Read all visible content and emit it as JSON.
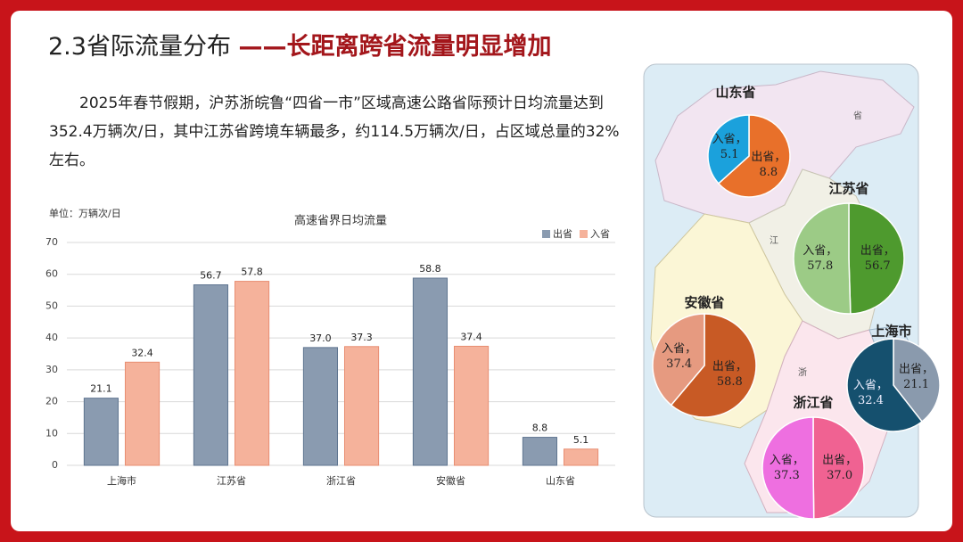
{
  "header": {
    "title": "2.3省际流量分布",
    "subtitle": "——长距离跨省流量明显增加"
  },
  "body_text": "2025年春节假期，沪苏浙皖鲁“四省一市”区域高速公路省际预计日均流量达到352.4万辆次/日，其中江苏省跨境车辆最多，约114.5万辆次/日，占区域总量的32%左右。",
  "map_labels": [
    "省",
    "江",
    "浙"
  ],
  "chart_data": [
    {
      "type": "bar",
      "title": "高速省界日均流量",
      "unit_label": "单位：万辆次/日",
      "categories": [
        "上海市",
        "江苏省",
        "浙江省",
        "安徽省",
        "山东省"
      ],
      "series": [
        {
          "name": "出省",
          "color": "#8a9bb0",
          "values": [
            21.1,
            56.7,
            37.0,
            58.8,
            8.8
          ],
          "value_labels": [
            "21.1",
            "56.7",
            "37.0",
            "58.8",
            "8.8"
          ]
        },
        {
          "name": "入省",
          "color": "#f5b29b",
          "values": [
            32.4,
            57.8,
            37.3,
            37.4,
            5.1
          ]
        }
      ],
      "ylim": [
        0,
        70
      ],
      "yticks": [
        0,
        10,
        20,
        30,
        40,
        50,
        60,
        70
      ],
      "grid": true,
      "legend": "top-right"
    },
    {
      "type": "pie",
      "title": "山东省",
      "values": [
        8.8,
        5.1
      ],
      "value_labels": [
        "出省，8.8",
        "入省，5.1"
      ],
      "colors": [
        "#e8702a",
        "#1ba1dc"
      ]
    },
    {
      "type": "pie",
      "title": "江苏省",
      "values": [
        56.7,
        57.8
      ],
      "value_labels": [
        "出省，56.7",
        "入省，57.8"
      ],
      "colors": [
        "#4e9a2e",
        "#9ccb86"
      ]
    },
    {
      "type": "pie",
      "title": "安徽省",
      "values": [
        58.8,
        37.4
      ],
      "value_labels": [
        "出省，58.8",
        "入省，37.4"
      ],
      "colors": [
        "#c85a25",
        "#e69a80"
      ]
    },
    {
      "type": "pie",
      "title": "上海市",
      "values": [
        21.1,
        32.4
      ],
      "value_labels": [
        "出省，21.1",
        "入省，32.4"
      ],
      "colors": [
        "#8a9aad",
        "#15506e"
      ]
    },
    {
      "type": "pie",
      "title": "浙江省",
      "values": [
        37.0,
        37.3
      ],
      "value_labels": [
        "出省，37.0",
        "入省，37.3"
      ],
      "colors": [
        "#f06292",
        "#ee6fe0"
      ]
    }
  ]
}
